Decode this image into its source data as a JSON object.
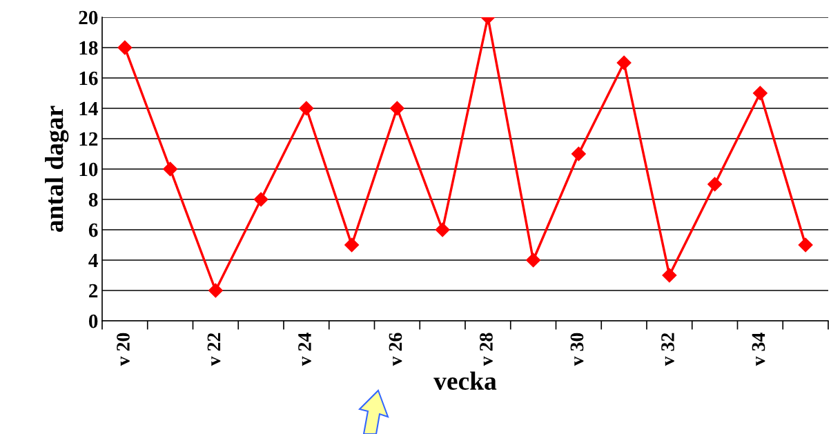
{
  "chart_data": {
    "type": "line",
    "categories": [
      "v 20",
      null,
      "v 22",
      null,
      "v 24",
      null,
      "v 26",
      null,
      "v 28",
      null,
      "v 30",
      null,
      "v 32",
      null,
      "v 34",
      null
    ],
    "series": [
      {
        "color": "#ff0000",
        "values": [
          18,
          10,
          2,
          8,
          14,
          5,
          14,
          6,
          20,
          4,
          11,
          17,
          3,
          9,
          15,
          5
        ]
      }
    ],
    "xlabel": "vecka",
    "ylabel": "antal dagar",
    "ylim": [
      0,
      20
    ],
    "yticks": [
      0,
      2,
      4,
      6,
      8,
      10,
      12,
      14,
      16,
      18,
      20
    ],
    "grid": "y",
    "marker": "diamond",
    "line_style": "solid"
  }
}
